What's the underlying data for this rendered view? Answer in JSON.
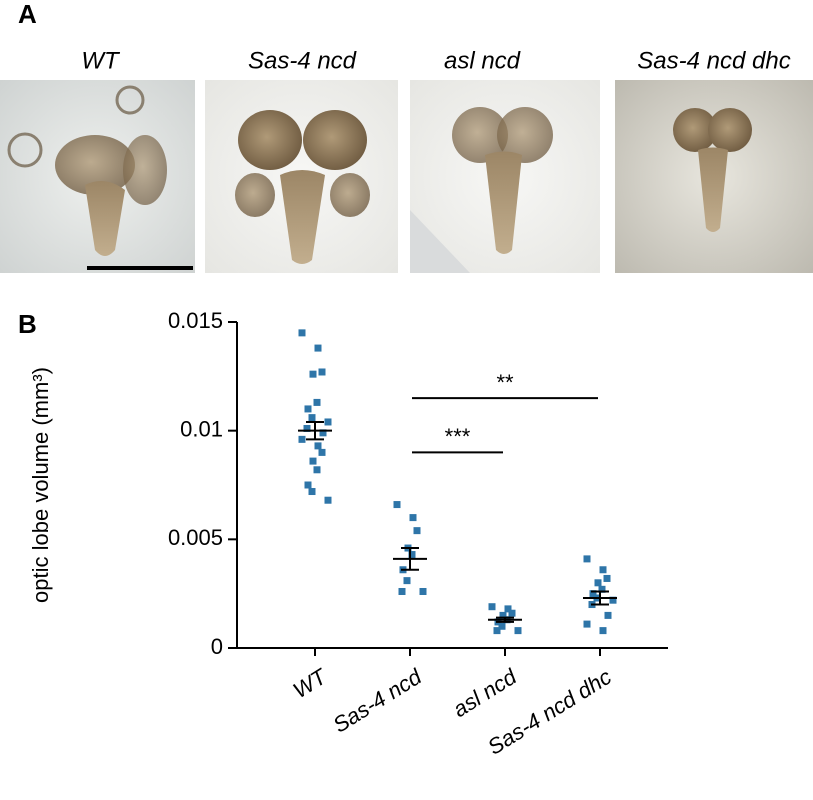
{
  "panel_a": {
    "label": "A",
    "image_titles": [
      "WT",
      "Sas-4 ncd",
      "asl ncd",
      "Sas-4 ncd dhc"
    ]
  },
  "chart_data": {
    "type": "strip",
    "panel_label": "B",
    "y_label": "optic lobe volume (mm³)",
    "categories": [
      "WT",
      "Sas-4 ncd",
      "asl ncd",
      "Sas-4 ncd dhc"
    ],
    "values": [
      [
        0.0145,
        0.0138,
        0.0127,
        0.0126,
        0.0113,
        0.011,
        0.0106,
        0.0104,
        0.0101,
        0.0099,
        0.0096,
        0.0093,
        0.009,
        0.0086,
        0.0082,
        0.0075,
        0.0072,
        0.0068
      ],
      [
        0.0066,
        0.006,
        0.0054,
        0.0046,
        0.0043,
        0.0036,
        0.0031,
        0.0026,
        0.0026
      ],
      [
        0.0019,
        0.0018,
        0.0016,
        0.0015,
        0.0013,
        0.0012,
        0.001,
        0.0008,
        0.0008
      ],
      [
        0.0041,
        0.0036,
        0.0032,
        0.003,
        0.0027,
        0.0025,
        0.0023,
        0.0022,
        0.002,
        0.0015,
        0.0011,
        0.0008
      ]
    ],
    "means": [
      0.01,
      0.0041,
      0.0013,
      0.0023
    ],
    "errors": [
      0.0004,
      0.0005,
      0.0001,
      0.0003
    ],
    "color": "#2e75a8",
    "ylim": [
      0,
      0.015
    ],
    "yticks": [
      0,
      0.005,
      0.01,
      0.015
    ],
    "significance": [
      {
        "from": 1,
        "to": 3,
        "y": 0.0115,
        "label": "**"
      },
      {
        "from": 1,
        "to": 2,
        "y": 0.009,
        "label": "***"
      }
    ]
  }
}
